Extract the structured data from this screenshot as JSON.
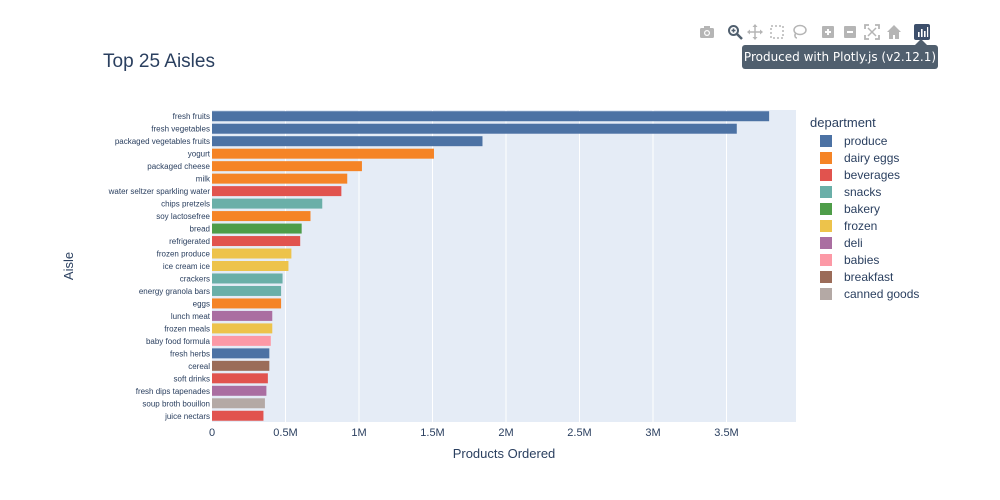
{
  "modebar": {
    "tooltip": "Produced with Plotly.js (v2.12.1)",
    "buttons": [
      {
        "icon": "camera-icon"
      },
      {
        "icon": "zoom-icon"
      },
      {
        "icon": "pan-icon"
      },
      {
        "icon": "box-select-icon"
      },
      {
        "icon": "lasso-select-icon"
      },
      {
        "icon": "zoom-in-icon"
      },
      {
        "icon": "zoom-out-icon"
      },
      {
        "icon": "autoscale-icon"
      },
      {
        "icon": "home-icon"
      },
      {
        "icon": "plotly-logo-icon"
      }
    ]
  },
  "colors": {
    "produce": "#4c72a4",
    "dairy eggs": "#f58426",
    "beverages": "#e1534e",
    "snacks": "#6aafa8",
    "bakery": "#4e9d49",
    "frozen": "#edc34b",
    "deli": "#aa6ea1",
    "babies": "#fc99a6",
    "breakfast": "#9b6c59",
    "canned goods": "#b4a9a5"
  },
  "chart_data": {
    "type": "bar",
    "orientation": "horizontal",
    "title": "Top 25 Aisles",
    "xlabel": "Products Ordered",
    "ylabel": "Aisle",
    "xlim": [
      0,
      4000000
    ],
    "xticks": [
      {
        "value": 0,
        "label": "0"
      },
      {
        "value": 500000,
        "label": "0.5M"
      },
      {
        "value": 1000000,
        "label": "1M"
      },
      {
        "value": 1500000,
        "label": "1.5M"
      },
      {
        "value": 2000000,
        "label": "2M"
      },
      {
        "value": 2500000,
        "label": "2.5M"
      },
      {
        "value": 3000000,
        "label": "3M"
      },
      {
        "value": 3500000,
        "label": "3.5M"
      }
    ],
    "legend_title": "department",
    "legend_placement": "right",
    "legend": [
      "produce",
      "dairy eggs",
      "beverages",
      "snacks",
      "bakery",
      "frozen",
      "deli",
      "babies",
      "breakfast",
      "canned goods"
    ],
    "bars": [
      {
        "aisle": "fresh fruits",
        "department": "produce",
        "value": 3790000
      },
      {
        "aisle": "fresh vegetables",
        "department": "produce",
        "value": 3570000
      },
      {
        "aisle": "packaged vegetables fruits",
        "department": "produce",
        "value": 1840000
      },
      {
        "aisle": "yogurt",
        "department": "dairy eggs",
        "value": 1510000
      },
      {
        "aisle": "packaged cheese",
        "department": "dairy eggs",
        "value": 1020000
      },
      {
        "aisle": "milk",
        "department": "dairy eggs",
        "value": 920000
      },
      {
        "aisle": "water seltzer sparkling water",
        "department": "beverages",
        "value": 880000
      },
      {
        "aisle": "chips pretzels",
        "department": "snacks",
        "value": 750000
      },
      {
        "aisle": "soy lactosefree",
        "department": "dairy eggs",
        "value": 670000
      },
      {
        "aisle": "bread",
        "department": "bakery",
        "value": 610000
      },
      {
        "aisle": "refrigerated",
        "department": "beverages",
        "value": 600000
      },
      {
        "aisle": "frozen produce",
        "department": "frozen",
        "value": 540000
      },
      {
        "aisle": "ice cream ice",
        "department": "frozen",
        "value": 520000
      },
      {
        "aisle": "crackers",
        "department": "snacks",
        "value": 480000
      },
      {
        "aisle": "energy granola bars",
        "department": "snacks",
        "value": 470000
      },
      {
        "aisle": "eggs",
        "department": "dairy eggs",
        "value": 470000
      },
      {
        "aisle": "lunch meat",
        "department": "deli",
        "value": 410000
      },
      {
        "aisle": "frozen meals",
        "department": "frozen",
        "value": 410000
      },
      {
        "aisle": "baby food formula",
        "department": "babies",
        "value": 400000
      },
      {
        "aisle": "fresh herbs",
        "department": "produce",
        "value": 390000
      },
      {
        "aisle": "cereal",
        "department": "breakfast",
        "value": 390000
      },
      {
        "aisle": "soft drinks",
        "department": "beverages",
        "value": 380000
      },
      {
        "aisle": "fresh dips tapenades",
        "department": "deli",
        "value": 370000
      },
      {
        "aisle": "soup broth bouillon",
        "department": "canned goods",
        "value": 360000
      },
      {
        "aisle": "juice nectars",
        "department": "beverages",
        "value": 350000
      }
    ]
  }
}
